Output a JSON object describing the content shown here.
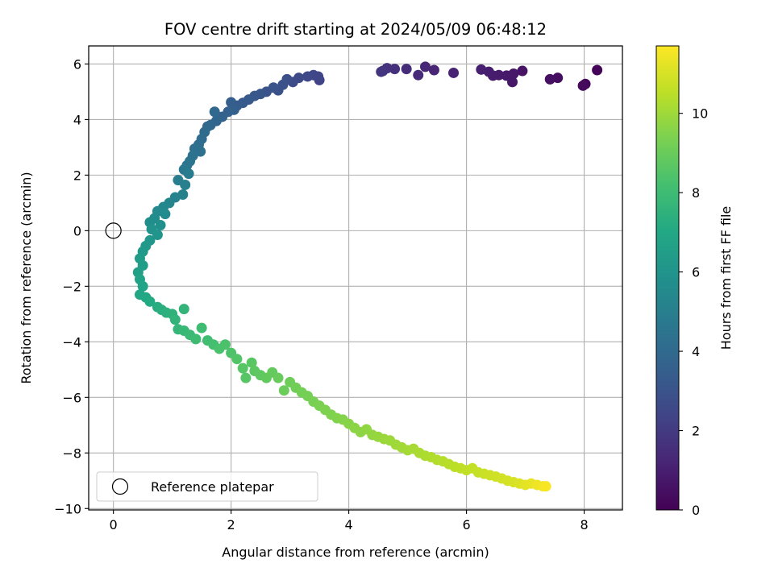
{
  "chart_data": {
    "type": "scatter",
    "title": "FOV centre drift starting at 2024/05/09 06:48:12",
    "xlabel": "Angular distance from reference (arcmin)",
    "ylabel": "Rotation from reference (arcmin)",
    "colorbar_label": "Hours from first FF file",
    "xlim": [
      -0.42,
      8.65
    ],
    "ylim": [
      -10.05,
      6.65
    ],
    "colorbar_range": [
      0,
      11.7
    ],
    "x_ticks": [
      0,
      2,
      4,
      6,
      8
    ],
    "y_ticks": [
      -10,
      -8,
      -6,
      -4,
      -2,
      0,
      2,
      4,
      6
    ],
    "colorbar_ticks": [
      0,
      2,
      4,
      6,
      8,
      10
    ],
    "grid": true,
    "colormap": "viridis",
    "legend_placement": "lower-left",
    "reference": {
      "label": "Reference platepar",
      "x": 0,
      "y": 0
    },
    "series": [
      {
        "points": [
          [
            8.22,
            5.78,
            0.1
          ],
          [
            8.02,
            5.28,
            0.2
          ],
          [
            7.98,
            5.22,
            0.3
          ],
          [
            7.55,
            5.5,
            0.4
          ],
          [
            7.42,
            5.45,
            0.5
          ],
          [
            6.95,
            5.75,
            0.6
          ],
          [
            6.78,
            5.35,
            0.7
          ],
          [
            6.8,
            5.65,
            0.75
          ],
          [
            6.68,
            5.58,
            0.8
          ],
          [
            6.55,
            5.6,
            0.85
          ],
          [
            6.45,
            5.58,
            0.9
          ],
          [
            6.38,
            5.72,
            0.95
          ],
          [
            6.25,
            5.8,
            1.0
          ],
          [
            5.78,
            5.68,
            1.1
          ],
          [
            5.45,
            5.78,
            1.2
          ],
          [
            5.3,
            5.9,
            1.3
          ],
          [
            5.18,
            5.6,
            1.4
          ],
          [
            4.98,
            5.82,
            1.5
          ],
          [
            4.78,
            5.82,
            1.6
          ],
          [
            4.65,
            5.85,
            1.7
          ],
          [
            4.58,
            5.75,
            1.75
          ],
          [
            4.55,
            5.72,
            1.8
          ],
          [
            3.5,
            5.42,
            2.3
          ],
          [
            3.48,
            5.55,
            2.4
          ],
          [
            3.4,
            5.6,
            2.45
          ],
          [
            3.3,
            5.55,
            2.5
          ],
          [
            3.15,
            5.5,
            2.6
          ],
          [
            3.05,
            5.35,
            2.7
          ],
          [
            2.95,
            5.45,
            2.8
          ],
          [
            2.88,
            5.25,
            2.85
          ],
          [
            2.8,
            5.05,
            2.9
          ],
          [
            2.72,
            5.15,
            3.0
          ],
          [
            2.6,
            5.0,
            3.05
          ],
          [
            2.5,
            4.92,
            3.1
          ],
          [
            2.4,
            4.85,
            3.2
          ],
          [
            2.3,
            4.72,
            3.25
          ],
          [
            2.2,
            4.6,
            3.3
          ],
          [
            2.1,
            4.5,
            3.4
          ],
          [
            2.0,
            4.62,
            3.45
          ],
          [
            2.05,
            4.35,
            3.5
          ],
          [
            1.95,
            4.28,
            3.6
          ],
          [
            1.85,
            4.1,
            3.7
          ],
          [
            1.75,
            3.95,
            3.8
          ],
          [
            1.65,
            3.8,
            3.9
          ],
          [
            1.72,
            4.28,
            3.95
          ],
          [
            1.6,
            3.75,
            4.0
          ],
          [
            1.55,
            3.55,
            4.05
          ],
          [
            1.5,
            3.3,
            4.1
          ],
          [
            1.45,
            3.1,
            4.2
          ],
          [
            1.38,
            2.95,
            4.3
          ],
          [
            1.48,
            2.85,
            4.35
          ],
          [
            1.35,
            2.7,
            4.4
          ],
          [
            1.3,
            2.5,
            4.5
          ],
          [
            1.25,
            2.35,
            4.6
          ],
          [
            1.2,
            2.2,
            4.7
          ],
          [
            1.28,
            2.05,
            4.8
          ],
          [
            1.1,
            1.82,
            4.9
          ],
          [
            1.22,
            1.65,
            5.0
          ],
          [
            1.18,
            1.3,
            5.1
          ],
          [
            1.05,
            1.2,
            5.2
          ],
          [
            0.95,
            1.0,
            5.3
          ],
          [
            0.85,
            0.85,
            5.4
          ],
          [
            0.75,
            0.7,
            5.5
          ],
          [
            0.88,
            0.6,
            5.55
          ],
          [
            0.7,
            0.45,
            5.6
          ],
          [
            0.62,
            0.3,
            5.7
          ],
          [
            0.8,
            0.2,
            5.8
          ],
          [
            0.65,
            0.05,
            5.9
          ],
          [
            0.75,
            -0.15,
            6.0
          ],
          [
            0.62,
            -0.35,
            6.1
          ],
          [
            0.55,
            -0.55,
            6.2
          ],
          [
            0.5,
            -0.75,
            6.3
          ],
          [
            0.45,
            -1.0,
            6.4
          ],
          [
            0.5,
            -1.25,
            6.5
          ],
          [
            0.42,
            -1.5,
            6.6
          ],
          [
            0.45,
            -1.75,
            6.7
          ],
          [
            0.5,
            -2.0,
            6.8
          ],
          [
            0.45,
            -2.3,
            6.9
          ],
          [
            0.55,
            -2.4,
            7.0
          ],
          [
            0.62,
            -2.55,
            7.1
          ],
          [
            0.75,
            -2.75,
            7.2
          ],
          [
            0.82,
            -2.85,
            7.3
          ],
          [
            0.9,
            -2.95,
            7.4
          ],
          [
            1.0,
            -3.0,
            7.5
          ],
          [
            1.05,
            -3.2,
            7.6
          ],
          [
            1.2,
            -2.82,
            7.65
          ],
          [
            1.1,
            -3.55,
            7.7
          ],
          [
            1.2,
            -3.6,
            7.8
          ],
          [
            1.3,
            -3.75,
            7.9
          ],
          [
            1.4,
            -3.9,
            8.0
          ],
          [
            1.5,
            -3.5,
            8.05
          ],
          [
            1.6,
            -3.95,
            8.1
          ],
          [
            1.7,
            -4.1,
            8.2
          ],
          [
            1.8,
            -4.25,
            8.3
          ],
          [
            1.9,
            -4.1,
            8.35
          ],
          [
            2.0,
            -4.4,
            8.4
          ],
          [
            2.1,
            -4.62,
            8.5
          ],
          [
            2.2,
            -4.95,
            8.55
          ],
          [
            2.25,
            -5.3,
            8.6
          ],
          [
            2.35,
            -4.75,
            8.65
          ],
          [
            2.4,
            -5.05,
            8.7
          ],
          [
            2.5,
            -5.2,
            8.8
          ],
          [
            2.6,
            -5.3,
            8.85
          ],
          [
            2.7,
            -5.1,
            8.9
          ],
          [
            2.8,
            -5.3,
            9.0
          ],
          [
            2.9,
            -5.75,
            9.05
          ],
          [
            3.0,
            -5.45,
            9.1
          ],
          [
            3.1,
            -5.65,
            9.15
          ],
          [
            3.2,
            -5.82,
            9.2
          ],
          [
            3.3,
            -5.95,
            9.25
          ],
          [
            3.4,
            -6.15,
            9.3
          ],
          [
            3.5,
            -6.3,
            9.35
          ],
          [
            3.6,
            -6.45,
            9.4
          ],
          [
            3.7,
            -6.62,
            9.45
          ],
          [
            3.8,
            -6.75,
            9.5
          ],
          [
            3.9,
            -6.8,
            9.55
          ],
          [
            4.0,
            -6.95,
            9.6
          ],
          [
            4.1,
            -7.1,
            9.65
          ],
          [
            4.2,
            -7.25,
            9.7
          ],
          [
            4.3,
            -7.15,
            9.75
          ],
          [
            4.4,
            -7.35,
            9.8
          ],
          [
            4.5,
            -7.42,
            9.85
          ],
          [
            4.6,
            -7.5,
            9.9
          ],
          [
            4.7,
            -7.55,
            9.95
          ],
          [
            4.8,
            -7.7,
            10.0
          ],
          [
            4.9,
            -7.8,
            10.05
          ],
          [
            5.0,
            -7.9,
            10.1
          ],
          [
            5.1,
            -7.85,
            10.15
          ],
          [
            5.2,
            -8.0,
            10.2
          ],
          [
            5.3,
            -8.1,
            10.25
          ],
          [
            5.4,
            -8.15,
            10.3
          ],
          [
            5.5,
            -8.25,
            10.35
          ],
          [
            5.6,
            -8.3,
            10.4
          ],
          [
            5.7,
            -8.4,
            10.45
          ],
          [
            5.8,
            -8.5,
            10.5
          ],
          [
            5.9,
            -8.55,
            10.55
          ],
          [
            6.0,
            -8.62,
            10.6
          ],
          [
            6.1,
            -8.55,
            10.65
          ],
          [
            6.2,
            -8.7,
            10.7
          ],
          [
            6.3,
            -8.75,
            10.75
          ],
          [
            6.4,
            -8.8,
            10.8
          ],
          [
            6.5,
            -8.85,
            10.85
          ],
          [
            6.6,
            -8.92,
            10.9
          ],
          [
            6.7,
            -9.0,
            10.95
          ],
          [
            6.8,
            -9.05,
            11.0
          ],
          [
            6.9,
            -9.1,
            11.1
          ],
          [
            7.0,
            -9.15,
            11.2
          ],
          [
            7.1,
            -9.1,
            11.3
          ],
          [
            7.2,
            -9.15,
            11.4
          ],
          [
            7.3,
            -9.2,
            11.5
          ],
          [
            7.35,
            -9.2,
            11.6
          ]
        ]
      }
    ]
  }
}
